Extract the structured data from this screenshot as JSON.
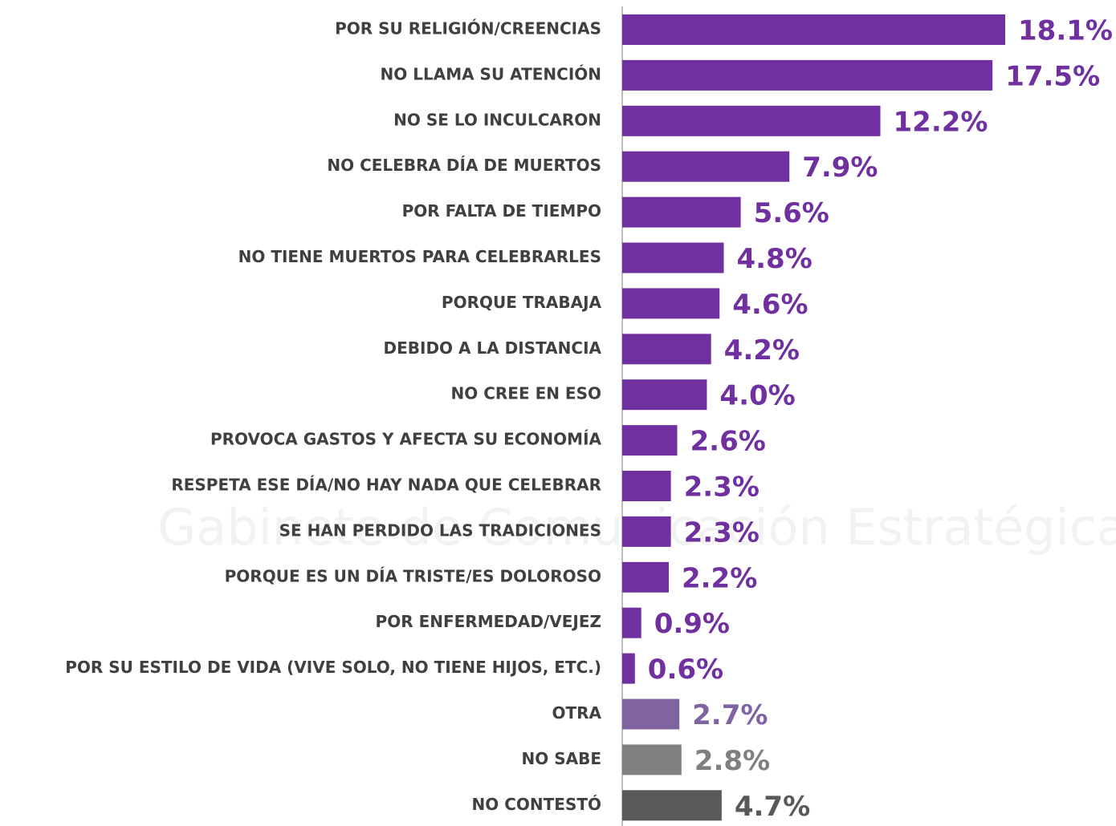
{
  "chart_data": {
    "type": "bar",
    "orientation": "horizontal",
    "watermark": "Gabinete de Comunicación Estratégica",
    "categories": [
      "POR SU RELIGIÓN/CREENCIAS",
      "NO LLAMA SU ATENCIÓN",
      "NO SE LO INCULCARON",
      "NO CELEBRA DÍA DE MUERTOS",
      "POR FALTA DE TIEMPO",
      "NO TIENE MUERTOS PARA CELEBRARLES",
      "PORQUE TRABAJA",
      "DEBIDO A LA DISTANCIA",
      "NO CREE EN ESO",
      "PROVOCA GASTOS Y AFECTA SU ECONOMÍA",
      "RESPETA ESE DÍA/NO HAY NADA QUE CELEBRAR",
      "SE HAN PERDIDO LAS TRADICIONES",
      "PORQUE ES UN DÍA TRISTE/ES DOLOROSO",
      "POR ENFERMEDAD/VEJEZ",
      "POR SU ESTILO DE VIDA (VIVE SOLO, NO TIENE HIJOS, ETC.)",
      "OTRA",
      "NO SABE",
      "NO CONTESTÓ"
    ],
    "values": [
      18.1,
      17.5,
      12.2,
      7.9,
      5.6,
      4.8,
      4.6,
      4.2,
      4.0,
      2.6,
      2.3,
      2.3,
      2.2,
      0.9,
      0.6,
      2.7,
      2.8,
      4.7
    ],
    "value_labels": [
      "18.1%",
      "17.5%",
      "12.2%",
      "7.9%",
      "5.6%",
      "4.8%",
      "4.6%",
      "4.2%",
      "4.0%",
      "2.6%",
      "2.3%",
      "2.3%",
      "2.2%",
      "0.9%",
      "0.6%",
      "2.7%",
      "2.8%",
      "4.7%"
    ],
    "colors": [
      "#7030a0",
      "#7030a0",
      "#7030a0",
      "#7030a0",
      "#7030a0",
      "#7030a0",
      "#7030a0",
      "#7030a0",
      "#7030a0",
      "#7030a0",
      "#7030a0",
      "#7030a0",
      "#7030a0",
      "#7030a0",
      "#7030a0",
      "#8064a2",
      "#808080",
      "#595959"
    ]
  }
}
